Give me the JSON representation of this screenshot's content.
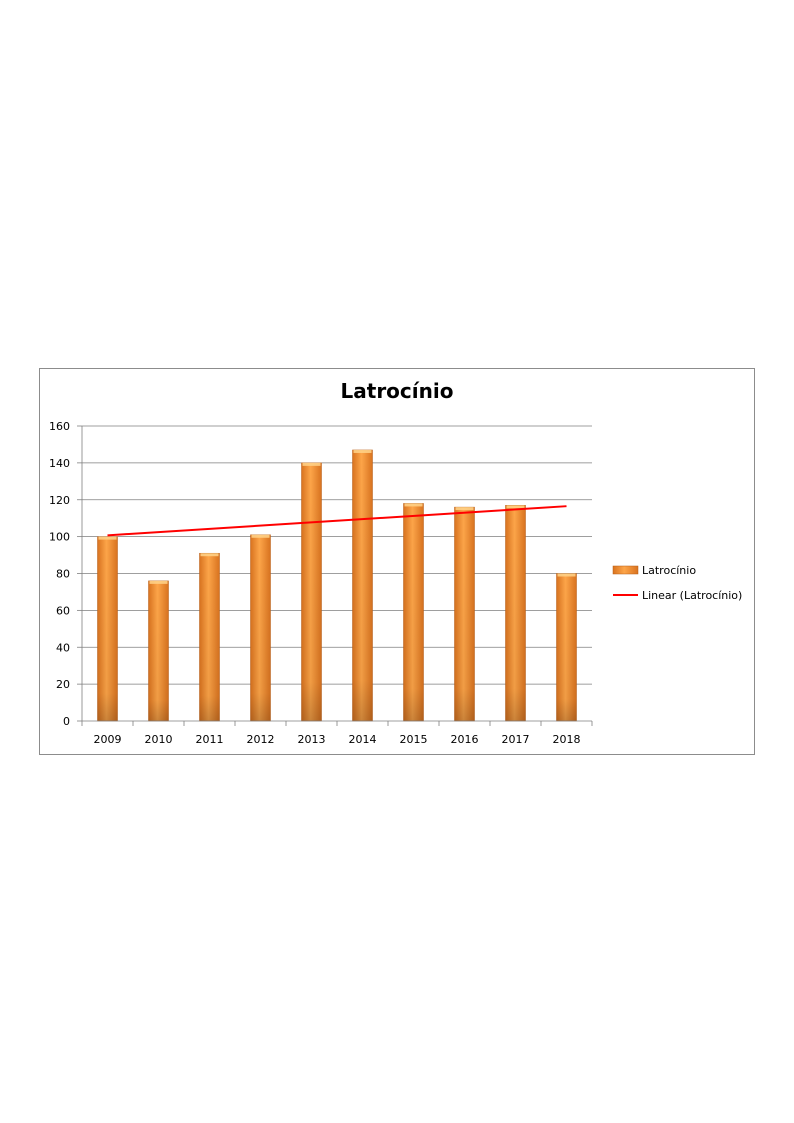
{
  "chart_data": {
    "type": "bar",
    "title": "Latrocínio",
    "categories": [
      "2009",
      "2010",
      "2011",
      "2012",
      "2013",
      "2014",
      "2015",
      "2016",
      "2017",
      "2018"
    ],
    "series": [
      {
        "name": "Latrocínio",
        "values": [
          100,
          76,
          91,
          101,
          140,
          147,
          118,
          116,
          117,
          80
        ]
      }
    ],
    "trendline": {
      "name": "Linear (Latrocínio)",
      "type": "linear"
    },
    "ylim": [
      0,
      160
    ],
    "yticks": [
      0,
      20,
      40,
      60,
      80,
      100,
      120,
      140,
      160
    ],
    "grid": true,
    "legend_position": "right",
    "colors": {
      "bar": "#f7922e",
      "bar_dark": "#c8651a",
      "trendline": "#ff0000",
      "grid": "#7f7f7f"
    }
  }
}
